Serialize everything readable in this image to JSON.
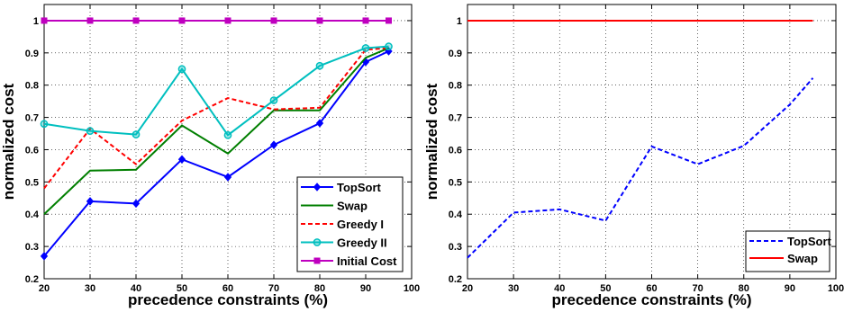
{
  "colors": {
    "topsort": "#0000ff",
    "swap": "#007f00",
    "greedy1": "#ff0000",
    "greedy2": "#00bfbf",
    "initial": "#bf00bf",
    "swap_right": "#ff0000"
  },
  "chart_data": [
    {
      "type": "line",
      "xlabel": "precedence constraints (%)",
      "ylabel": "normalized cost",
      "xlim": [
        20,
        100
      ],
      "ylim": [
        0.2,
        1.05
      ],
      "xticks": [
        "20",
        "30",
        "40",
        "50",
        "60",
        "70",
        "80",
        "90",
        "100"
      ],
      "yticks": [
        "0.2",
        "0.3",
        "0.4",
        "0.5",
        "0.6",
        "0.7",
        "0.8",
        "0.9",
        "1"
      ],
      "legend_position": "bottom-right",
      "x": [
        20,
        30,
        40,
        50,
        60,
        70,
        80,
        90,
        95
      ],
      "series": [
        {
          "name": "TopSort",
          "values": [
            0.27,
            0.44,
            0.433,
            0.57,
            0.515,
            0.615,
            0.682,
            0.872,
            0.905
          ],
          "color": "#0000ff",
          "dash": "solid",
          "marker": "diamond"
        },
        {
          "name": "Swap",
          "values": [
            0.4,
            0.535,
            0.538,
            0.675,
            0.588,
            0.722,
            0.722,
            0.885,
            0.915
          ],
          "color": "#007f00",
          "dash": "solid",
          "marker": "none"
        },
        {
          "name": "Greedy I",
          "values": [
            0.48,
            0.665,
            0.555,
            0.69,
            0.76,
            0.725,
            0.73,
            0.91,
            0.915
          ],
          "color": "#ff0000",
          "dash": "dashed",
          "marker": "none"
        },
        {
          "name": "Greedy II",
          "values": [
            0.68,
            0.658,
            0.647,
            0.85,
            0.645,
            0.753,
            0.86,
            0.915,
            0.92
          ],
          "color": "#00bfbf",
          "dash": "solid",
          "marker": "circle"
        },
        {
          "name": "Initial Cost",
          "values": [
            1,
            1,
            1,
            1,
            1,
            1,
            1,
            1,
            1
          ],
          "color": "#bf00bf",
          "dash": "solid",
          "marker": "square"
        }
      ]
    },
    {
      "type": "line",
      "xlabel": "precedence constraints (%)",
      "ylabel": "normalized cost",
      "xlim": [
        20,
        100
      ],
      "ylim": [
        0.2,
        1.05
      ],
      "xticks": [
        "20",
        "30",
        "40",
        "50",
        "60",
        "70",
        "80",
        "90",
        "100"
      ],
      "yticks": [
        "0.2",
        "0.3",
        "0.4",
        "0.5",
        "0.6",
        "0.7",
        "0.8",
        "0.9",
        "1"
      ],
      "legend_position": "bottom-right",
      "x": [
        20,
        30,
        40,
        50,
        60,
        70,
        80,
        90,
        95
      ],
      "series": [
        {
          "name": "TopSort",
          "values": [
            0.265,
            0.405,
            0.415,
            0.38,
            0.61,
            0.555,
            0.612,
            0.74,
            0.822
          ],
          "color": "#0000ff",
          "dash": "dashed",
          "marker": "none"
        },
        {
          "name": "Swap",
          "values": [
            1,
            1,
            1,
            1,
            1,
            1,
            1,
            1,
            1
          ],
          "color": "#ff0000",
          "dash": "solid",
          "marker": "none"
        }
      ]
    }
  ]
}
